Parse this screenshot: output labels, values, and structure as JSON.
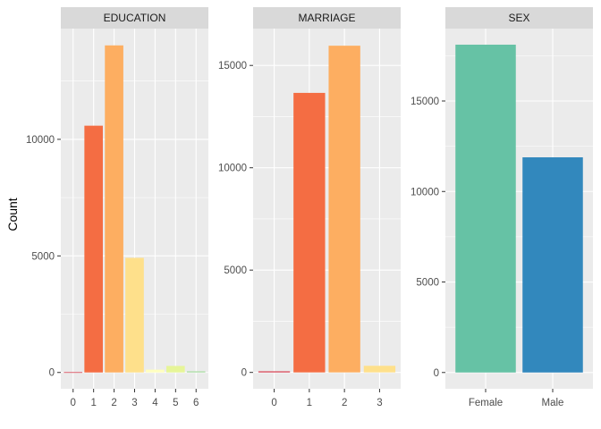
{
  "chart_data": {
    "type": "bar",
    "ylabel": "Count",
    "grid": true,
    "facets": [
      {
        "title": "EDUCATION",
        "categories": [
          "0",
          "1",
          "2",
          "3",
          "4",
          "5",
          "6"
        ],
        "values": [
          14,
          10585,
          14030,
          4917,
          123,
          280,
          51
        ],
        "colors": [
          "#D53E4F",
          "#F46D43",
          "#FDAE61",
          "#FEE08B",
          "#FFFFBF",
          "#E6F598",
          "#ABDDA4"
        ],
        "ylim": [
          -700,
          14750
        ],
        "yticks": [
          0,
          5000,
          10000
        ],
        "ytick_labels": [
          "0",
          "5000",
          "10000"
        ]
      },
      {
        "title": "MARRIAGE",
        "categories": [
          "0",
          "1",
          "2",
          "3"
        ],
        "values": [
          54,
          13659,
          15964,
          323
        ],
        "colors": [
          "#D53E4F",
          "#F46D43",
          "#FDAE61",
          "#FEE08B"
        ],
        "ylim": [
          -800,
          16800
        ],
        "yticks": [
          0,
          5000,
          10000,
          15000
        ],
        "ytick_labels": [
          "0",
          "5000",
          "10000",
          "15000"
        ]
      },
      {
        "title": "SEX",
        "categories": [
          "Female",
          "Male"
        ],
        "values": [
          18112,
          11888
        ],
        "colors": [
          "#66C2A5",
          "#3288BD"
        ],
        "ylim": [
          -900,
          19000
        ],
        "yticks": [
          0,
          5000,
          10000,
          15000
        ],
        "ytick_labels": [
          "0",
          "5000",
          "10000",
          "15000"
        ]
      }
    ]
  }
}
